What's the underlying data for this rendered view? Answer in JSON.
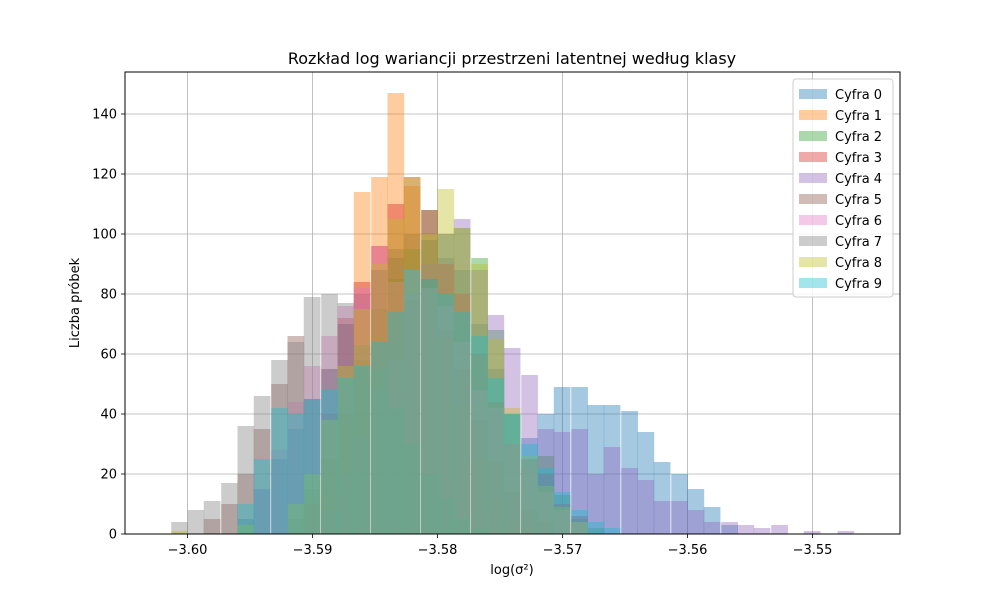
{
  "chart_data": {
    "type": "bar",
    "subtype": "histogram",
    "title": "Rozkład log wariancji przestrzeni latentnej według klasy",
    "xlabel": "log(σ²)",
    "ylabel": "Liczba próbek",
    "xlim": [
      -3.605,
      -3.543
    ],
    "ylim": [
      0,
      154
    ],
    "xticks": [
      -3.6,
      -3.59,
      -3.58,
      -3.57,
      -3.56,
      -3.55
    ],
    "xtick_labels": [
      "−3.60",
      "−3.59",
      "−3.58",
      "−3.57",
      "−3.56",
      "−3.55"
    ],
    "yticks": [
      0,
      20,
      40,
      60,
      80,
      100,
      120,
      140
    ],
    "ytick_labels": [
      "0",
      "20",
      "40",
      "60",
      "80",
      "100",
      "120",
      "140"
    ],
    "grid": true,
    "legend_position": "upper right",
    "bar_opacity": 0.4,
    "series": [
      {
        "name": "Cyfra 0",
        "color": "#1f77b4",
        "bins": [
          [
            -3.596,
            5
          ],
          [
            -3.5947,
            15
          ],
          [
            -3.5933,
            25
          ],
          [
            -3.592,
            35
          ],
          [
            -3.5907,
            45
          ],
          [
            -3.5893,
            55
          ],
          [
            -3.588,
            70
          ],
          [
            -3.5867,
            80
          ],
          [
            -3.5853,
            88
          ],
          [
            -3.584,
            95
          ],
          [
            -3.5827,
            100
          ],
          [
            -3.5813,
            98
          ],
          [
            -3.58,
            92
          ],
          [
            -3.5787,
            88
          ],
          [
            -3.5773,
            70
          ],
          [
            -3.576,
            55
          ],
          [
            -3.5747,
            40
          ],
          [
            -3.5733,
            32
          ],
          [
            -3.572,
            40
          ],
          [
            -3.5707,
            49
          ],
          [
            -3.5693,
            49
          ],
          [
            -3.568,
            43
          ],
          [
            -3.5667,
            43
          ],
          [
            -3.5653,
            41
          ],
          [
            -3.564,
            34
          ],
          [
            -3.5627,
            24
          ],
          [
            -3.5613,
            20
          ],
          [
            -3.56,
            15
          ],
          [
            -3.5587,
            9
          ],
          [
            -3.5573,
            3
          ]
        ]
      },
      {
        "name": "Cyfra 1",
        "color": "#ff7f0e",
        "bins": [
          [
            -3.5893,
            13
          ],
          [
            -3.588,
            40
          ],
          [
            -3.5867,
            114
          ],
          [
            -3.5853,
            119
          ],
          [
            -3.584,
            147
          ],
          [
            -3.5827,
            116
          ],
          [
            -3.5813,
            85
          ],
          [
            -3.58,
            65
          ],
          [
            -3.5787,
            43
          ],
          [
            -3.5773,
            25
          ],
          [
            -3.576,
            12
          ],
          [
            -3.5747,
            5
          ],
          [
            -3.5733,
            2
          ]
        ]
      },
      {
        "name": "Cyfra 2",
        "color": "#2ca02c",
        "bins": [
          [
            -3.592,
            5
          ],
          [
            -3.5907,
            15
          ],
          [
            -3.5893,
            25
          ],
          [
            -3.588,
            40
          ],
          [
            -3.5867,
            55
          ],
          [
            -3.5853,
            75
          ],
          [
            -3.584,
            85
          ],
          [
            -3.5827,
            95
          ],
          [
            -3.5813,
            108
          ],
          [
            -3.58,
            100
          ],
          [
            -3.5787,
            102
          ],
          [
            -3.5773,
            92
          ],
          [
            -3.576,
            68
          ],
          [
            -3.5747,
            40
          ],
          [
            -3.5733,
            22
          ],
          [
            -3.572,
            26
          ],
          [
            -3.5707,
            13
          ],
          [
            -3.5693,
            5
          ],
          [
            -3.568,
            2
          ]
        ]
      },
      {
        "name": "Cyfra 3",
        "color": "#d62728",
        "bins": [
          [
            -3.5907,
            10
          ],
          [
            -3.5893,
            40
          ],
          [
            -3.588,
            72
          ],
          [
            -3.5867,
            84
          ],
          [
            -3.5853,
            96
          ],
          [
            -3.584,
            110
          ],
          [
            -3.5827,
            119
          ],
          [
            -3.5813,
            108
          ],
          [
            -3.58,
            90
          ],
          [
            -3.5787,
            80
          ],
          [
            -3.5773,
            60
          ],
          [
            -3.576,
            44
          ],
          [
            -3.5747,
            30
          ],
          [
            -3.5733,
            25
          ],
          [
            -3.572,
            20
          ],
          [
            -3.5707,
            10
          ],
          [
            -3.5693,
            6
          ]
        ]
      },
      {
        "name": "Cyfra 4",
        "color": "#9467bd",
        "bins": [
          [
            -3.5893,
            8
          ],
          [
            -3.588,
            20
          ],
          [
            -3.5867,
            32
          ],
          [
            -3.5853,
            48
          ],
          [
            -3.584,
            58
          ],
          [
            -3.5827,
            80
          ],
          [
            -3.5813,
            90
          ],
          [
            -3.58,
            100
          ],
          [
            -3.5787,
            105
          ],
          [
            -3.5773,
            88
          ],
          [
            -3.576,
            73
          ],
          [
            -3.5747,
            62
          ],
          [
            -3.5733,
            53
          ],
          [
            -3.572,
            35
          ],
          [
            -3.5707,
            34
          ],
          [
            -3.5693,
            35
          ],
          [
            -3.568,
            20
          ],
          [
            -3.5667,
            29
          ],
          [
            -3.5653,
            22
          ],
          [
            -3.564,
            18
          ],
          [
            -3.5627,
            11
          ],
          [
            -3.5613,
            11
          ],
          [
            -3.56,
            8
          ],
          [
            -3.5587,
            4
          ],
          [
            -3.5573,
            4
          ],
          [
            -3.556,
            3
          ],
          [
            -3.5547,
            2
          ],
          [
            -3.5533,
            3
          ],
          [
            -3.5507,
            1
          ],
          [
            -3.548,
            1
          ]
        ]
      },
      {
        "name": "Cyfra 5",
        "color": "#8c564b",
        "bins": [
          [
            -3.5987,
            5
          ],
          [
            -3.5973,
            10
          ],
          [
            -3.596,
            20
          ],
          [
            -3.5947,
            35
          ],
          [
            -3.5933,
            50
          ],
          [
            -3.592,
            66
          ],
          [
            -3.5907,
            45
          ],
          [
            -3.5893,
            55
          ],
          [
            -3.588,
            70
          ],
          [
            -3.5867,
            58
          ],
          [
            -3.5853,
            88
          ],
          [
            -3.584,
            92
          ],
          [
            -3.5827,
            78
          ],
          [
            -3.5813,
            85
          ],
          [
            -3.58,
            68
          ],
          [
            -3.5787,
            55
          ],
          [
            -3.5773,
            38
          ],
          [
            -3.576,
            24
          ],
          [
            -3.5747,
            14
          ],
          [
            -3.5733,
            8
          ],
          [
            -3.572,
            4
          ]
        ]
      },
      {
        "name": "Cyfra 6",
        "color": "#e377c2",
        "bins": [
          [
            -3.5947,
            15
          ],
          [
            -3.5933,
            28
          ],
          [
            -3.592,
            44
          ],
          [
            -3.5907,
            56
          ],
          [
            -3.5893,
            66
          ],
          [
            -3.588,
            76
          ],
          [
            -3.5867,
            82
          ],
          [
            -3.5853,
            96
          ],
          [
            -3.584,
            84
          ],
          [
            -3.5827,
            88
          ],
          [
            -3.5813,
            82
          ],
          [
            -3.58,
            76
          ],
          [
            -3.5787,
            64
          ],
          [
            -3.5773,
            48
          ],
          [
            -3.576,
            42
          ],
          [
            -3.5747,
            30
          ],
          [
            -3.5733,
            22
          ],
          [
            -3.572,
            14
          ],
          [
            -3.5707,
            8
          ],
          [
            -3.5693,
            4
          ]
        ]
      },
      {
        "name": "Cyfra 7",
        "color": "#7f7f7f",
        "bins": [
          [
            -3.6013,
            4
          ],
          [
            -3.6,
            8
          ],
          [
            -3.5987,
            11
          ],
          [
            -3.5973,
            17
          ],
          [
            -3.596,
            36
          ],
          [
            -3.5947,
            46
          ],
          [
            -3.5933,
            58
          ],
          [
            -3.592,
            64
          ],
          [
            -3.5907,
            79
          ],
          [
            -3.5893,
            80
          ],
          [
            -3.588,
            77
          ],
          [
            -3.5867,
            63
          ],
          [
            -3.5853,
            55
          ],
          [
            -3.584,
            42
          ],
          [
            -3.5827,
            30
          ],
          [
            -3.5813,
            20
          ],
          [
            -3.58,
            12
          ],
          [
            -3.5787,
            5
          ],
          [
            -3.5773,
            2
          ]
        ]
      },
      {
        "name": "Cyfra 8",
        "color": "#bcbd22",
        "bins": [
          [
            -3.6013,
            1
          ],
          [
            -3.596,
            3
          ],
          [
            -3.592,
            10
          ],
          [
            -3.5907,
            20
          ],
          [
            -3.5893,
            38
          ],
          [
            -3.588,
            56
          ],
          [
            -3.5867,
            75
          ],
          [
            -3.5853,
            90
          ],
          [
            -3.584,
            105
          ],
          [
            -3.5827,
            119
          ],
          [
            -3.5813,
            100
          ],
          [
            -3.58,
            115
          ],
          [
            -3.5787,
            102
          ],
          [
            -3.5773,
            90
          ],
          [
            -3.576,
            65
          ],
          [
            -3.5747,
            42
          ],
          [
            -3.5733,
            26
          ],
          [
            -3.572,
            16
          ],
          [
            -3.5707,
            9
          ],
          [
            -3.5693,
            4
          ]
        ]
      },
      {
        "name": "Cyfra 9",
        "color": "#17becf",
        "bins": [
          [
            -3.596,
            10
          ],
          [
            -3.5947,
            25
          ],
          [
            -3.5933,
            42
          ],
          [
            -3.592,
            40
          ],
          [
            -3.5907,
            45
          ],
          [
            -3.5893,
            48
          ],
          [
            -3.588,
            52
          ],
          [
            -3.5867,
            56
          ],
          [
            -3.5853,
            64
          ],
          [
            -3.584,
            74
          ],
          [
            -3.5827,
            88
          ],
          [
            -3.5813,
            85
          ],
          [
            -3.58,
            80
          ],
          [
            -3.5787,
            74
          ],
          [
            -3.5773,
            66
          ],
          [
            -3.576,
            52
          ],
          [
            -3.5747,
            40
          ],
          [
            -3.5733,
            30
          ],
          [
            -3.572,
            22
          ],
          [
            -3.5707,
            14
          ],
          [
            -3.5693,
            8
          ],
          [
            -3.568,
            4
          ],
          [
            -3.5667,
            2
          ]
        ]
      }
    ]
  }
}
